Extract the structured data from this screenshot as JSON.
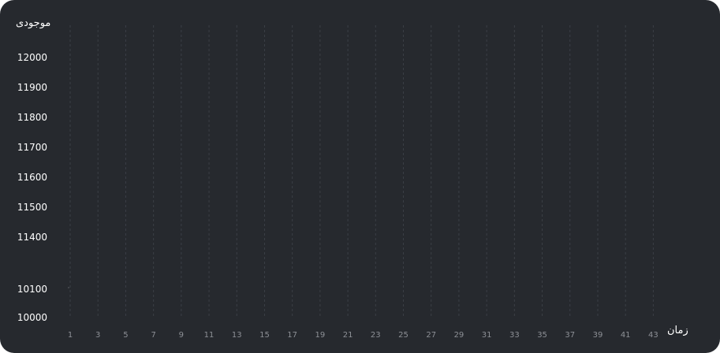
{
  "chart_data": {
    "type": "line",
    "title": "",
    "ylabel": "موجودی",
    "xlabel": "زمان",
    "x_ticks": [
      "1",
      "3",
      "5",
      "7",
      "9",
      "11",
      "13",
      "15",
      "17",
      "19",
      "21",
      "23",
      "25",
      "27",
      "29",
      "31",
      "33",
      "35",
      "37",
      "39",
      "41",
      "43"
    ],
    "y_ticks": [
      "12000",
      "11900",
      "11800",
      "11700",
      "11600",
      "11500",
      "11400",
      "10100",
      "10000"
    ],
    "x_range": [
      1,
      44
    ],
    "grid": "vertical dashed",
    "series": [
      {
        "color": "#8d9096",
        "points": [
          [
            1,
            10130
          ],
          [
            1,
            10150
          ]
        ]
      }
    ]
  },
  "colors": {
    "background": "#26292e",
    "grid": "#3b3f46",
    "text": "#ffffff",
    "tick": "#8d9096"
  }
}
